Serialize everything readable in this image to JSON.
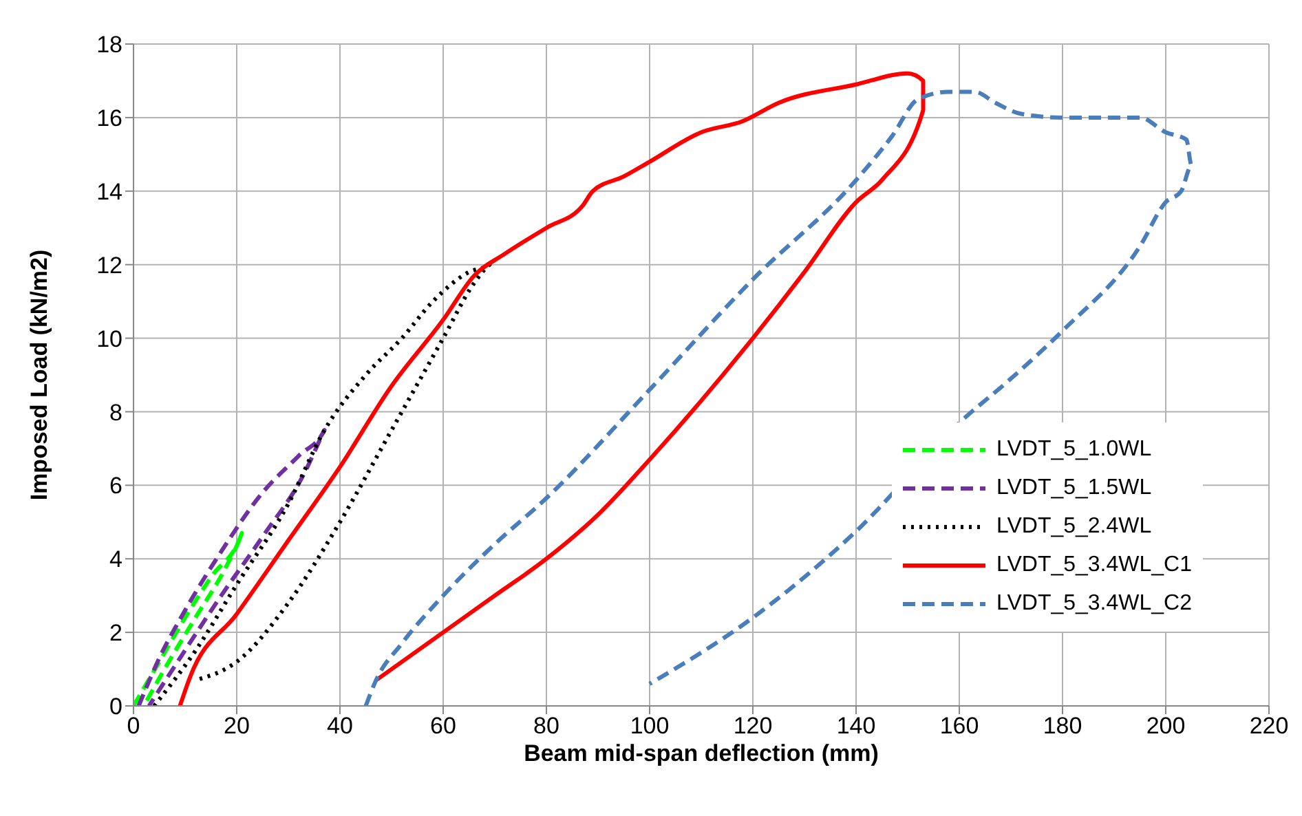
{
  "chart_data": {
    "type": "line",
    "xlabel": "Beam mid-span deflection (mm)",
    "ylabel": "Imposed Load (kN/m2)",
    "xlim": [
      0,
      220
    ],
    "xticks": [
      0,
      20,
      40,
      60,
      80,
      100,
      120,
      140,
      160,
      180,
      200,
      220
    ],
    "ylim": [
      0,
      18
    ],
    "yticks": [
      0,
      2,
      4,
      6,
      8,
      10,
      12,
      14,
      16,
      18
    ],
    "grid": true,
    "legend": "bottom right",
    "marker": "none",
    "series": [
      {
        "name": "LVDT_5_1.0WL",
        "color": "#00ff00",
        "line_style": "dashed",
        "x": [
          0,
          5,
          10,
          15,
          21,
          18,
          12,
          6,
          2
        ],
        "values": [
          0,
          1.2,
          2.4,
          3.5,
          4.7,
          3.8,
          2.4,
          1,
          0
        ]
      },
      {
        "name": "LVDT_5_1.5WL",
        "color": "#7030a0",
        "line_style": "dashed",
        "x": [
          1,
          5,
          10,
          17,
          25,
          32,
          37,
          33,
          25,
          17,
          9,
          3
        ],
        "values": [
          0,
          1.3,
          2.6,
          4.2,
          5.8,
          6.8,
          7.5,
          6.3,
          4.6,
          3,
          1.3,
          0
        ]
      },
      {
        "name": "LVDT_5_2.4WL",
        "color": "#000000",
        "line_style": "dotted",
        "x": [
          4,
          12,
          20,
          30,
          37,
          45,
          52,
          58,
          65,
          69,
          66,
          60,
          50,
          40,
          30,
          20,
          12
        ],
        "values": [
          0,
          1.5,
          3.3,
          5.5,
          7.5,
          9,
          10,
          11,
          11.8,
          12,
          11.5,
          10,
          7.5,
          5,
          2.8,
          1.2,
          0.7
        ]
      },
      {
        "name": "LVDT_5_3.4WL_C1",
        "color": "#ff0000",
        "line_style": "solid",
        "x": [
          9,
          11,
          20,
          30,
          40,
          50,
          60,
          66,
          72,
          80,
          87,
          89,
          95,
          100,
          110,
          118,
          125,
          140,
          150,
          153,
          153,
          145,
          140,
          130,
          120,
          110,
          100,
          90,
          80,
          70,
          60,
          47
        ],
        "values": [
          0,
          0.8,
          2.5,
          4.5,
          6.5,
          8.7,
          10.5,
          11.7,
          12.3,
          13,
          13.6,
          14,
          14.4,
          14.8,
          15.6,
          15.9,
          16.4,
          16.9,
          17.2,
          17,
          16.2,
          14.3,
          13.7,
          11.8,
          10,
          8.3,
          6.7,
          5.2,
          4,
          3,
          2,
          0.7
        ]
      },
      {
        "name": "LVDT_5_3.4WL_C2",
        "color": "#4a7ebb",
        "line_style": "dashed",
        "x": [
          45,
          47,
          52,
          60,
          70,
          80,
          100,
          120,
          140,
          147,
          152,
          158,
          163,
          167,
          172,
          180,
          195,
          200,
          204,
          205,
          203,
          200,
          195,
          180,
          170,
          160,
          140,
          120,
          100
        ],
        "values": [
          0,
          0.7,
          1.7,
          3,
          4.4,
          5.65,
          8.6,
          11.6,
          14.3,
          15.5,
          16.5,
          16.7,
          16.7,
          16.4,
          16.1,
          16,
          16,
          15.6,
          15.4,
          14.7,
          14,
          13.7,
          12.5,
          10.2,
          8.9,
          7.7,
          4.75,
          2.4,
          0.6
        ]
      }
    ]
  }
}
